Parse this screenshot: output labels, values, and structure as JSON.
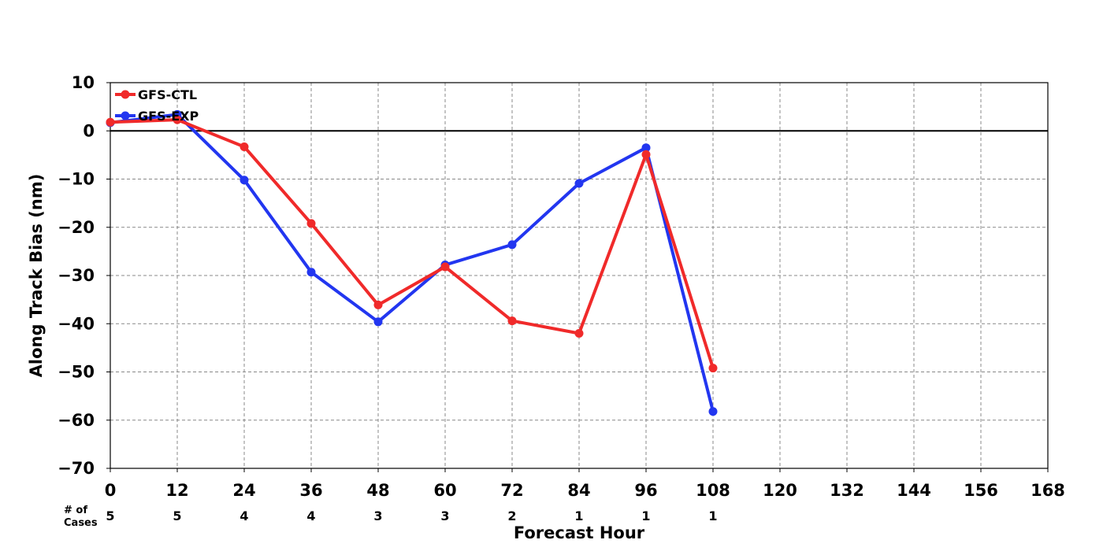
{
  "chart_data": {
    "type": "line",
    "title": "",
    "xlabel": "Forecast Hour",
    "ylabel": "Along Track Bias (nm)",
    "xlim": [
      0,
      168
    ],
    "ylim": [
      -70,
      10
    ],
    "x_ticks": [
      "0",
      "12",
      "24",
      "36",
      "48",
      "60",
      "72",
      "84",
      "96",
      "108",
      "120",
      "132",
      "144",
      "156",
      "168"
    ],
    "y_ticks": [
      "10",
      "0",
      "−10",
      "−20",
      "−30",
      "−40",
      "−50",
      "−60",
      "−70"
    ],
    "grid": true,
    "zero_line": true,
    "legend_position": "top-left",
    "cases_title": "# of Cases",
    "cases": [
      {
        "x": 0,
        "label": "5"
      },
      {
        "x": 12,
        "label": "5"
      },
      {
        "x": 24,
        "label": "4"
      },
      {
        "x": 36,
        "label": "4"
      },
      {
        "x": 48,
        "label": "3"
      },
      {
        "x": 60,
        "label": "3"
      },
      {
        "x": 72,
        "label": "2"
      },
      {
        "x": 84,
        "label": "1"
      },
      {
        "x": 96,
        "label": "1"
      },
      {
        "x": 108,
        "label": "1"
      }
    ],
    "x": [
      0,
      12,
      24,
      36,
      48,
      60,
      72,
      84,
      96,
      108
    ],
    "series": [
      {
        "name": "GFS-CTL",
        "color": "#f02a2a",
        "values": [
          1.8,
          2.3,
          -3.3,
          -19.2,
          -36.1,
          -28.2,
          -39.4,
          -42.0,
          -4.9,
          -49.2
        ]
      },
      {
        "name": "GFS-EXP",
        "color": "#2236f0",
        "values": [
          1.7,
          3.4,
          -10.2,
          -29.3,
          -39.6,
          -27.8,
          -23.6,
          -10.9,
          -3.5,
          -58.2
        ]
      }
    ]
  }
}
